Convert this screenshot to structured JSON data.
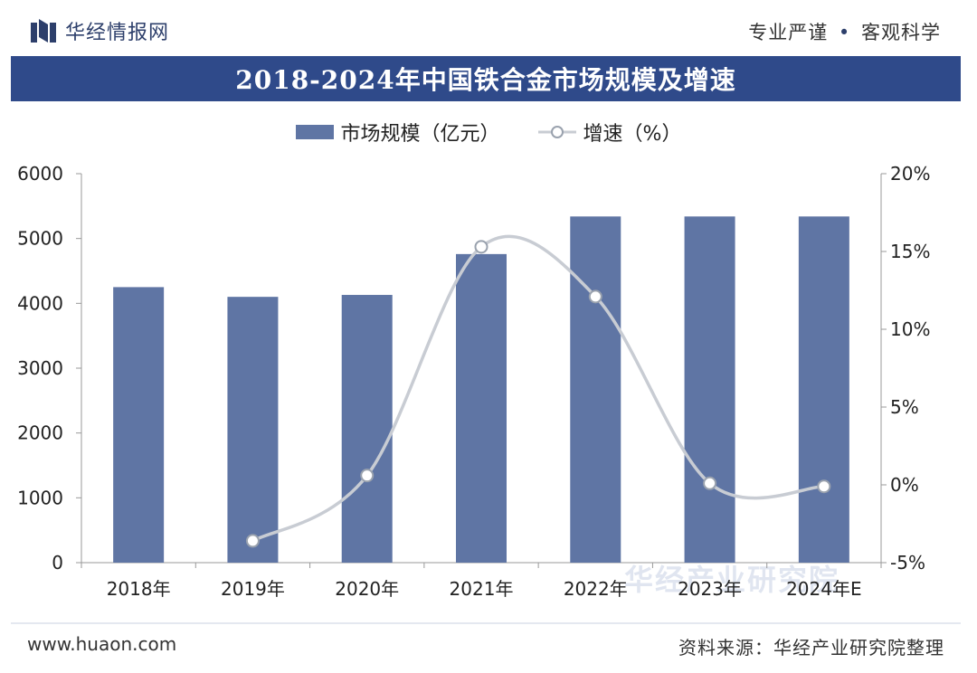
{
  "header": {
    "logo_text": "华经情报网",
    "slogan_left": "专业严谨",
    "slogan_dot": "•",
    "slogan_right": "客观科学"
  },
  "colors": {
    "title_bar": "#2f4a8a",
    "bar": "#5f75a4",
    "line": "#c8ccd3",
    "point_stroke": "#9aa2ae"
  },
  "watermark": "华经产业研究院",
  "footer": {
    "website": "www.huaon.com",
    "source": "资料来源：华经产业研究院整理"
  },
  "chart_data": {
    "type": "bar",
    "title": "2018-2024年中国铁合金市场规模及增速",
    "categories": [
      "2018年",
      "2019年",
      "2020年",
      "2021年",
      "2022年",
      "2023年",
      "2024年E"
    ],
    "series": [
      {
        "name": "市场规模（亿元）",
        "type": "bar",
        "axis": "left",
        "values": [
          4250,
          4100,
          4130,
          4760,
          5340,
          5340,
          5340
        ]
      },
      {
        "name": "增速（%）",
        "type": "line",
        "axis": "right",
        "values": [
          null,
          -3.6,
          0.6,
          15.3,
          12.1,
          0.1,
          -0.1
        ]
      }
    ],
    "y_left": {
      "min": 0,
      "max": 6000,
      "ticks": [
        "0",
        "1000",
        "2000",
        "3000",
        "4000",
        "5000",
        "6000"
      ],
      "tick_values": [
        0,
        1000,
        2000,
        3000,
        4000,
        5000,
        6000
      ]
    },
    "y_right": {
      "min": -5,
      "max": 20,
      "ticks": [
        "-5%",
        "0%",
        "5%",
        "10%",
        "15%",
        "20%"
      ],
      "tick_values": [
        -5,
        0,
        5,
        10,
        15,
        20
      ]
    },
    "grid": false,
    "legend": "top-center"
  }
}
